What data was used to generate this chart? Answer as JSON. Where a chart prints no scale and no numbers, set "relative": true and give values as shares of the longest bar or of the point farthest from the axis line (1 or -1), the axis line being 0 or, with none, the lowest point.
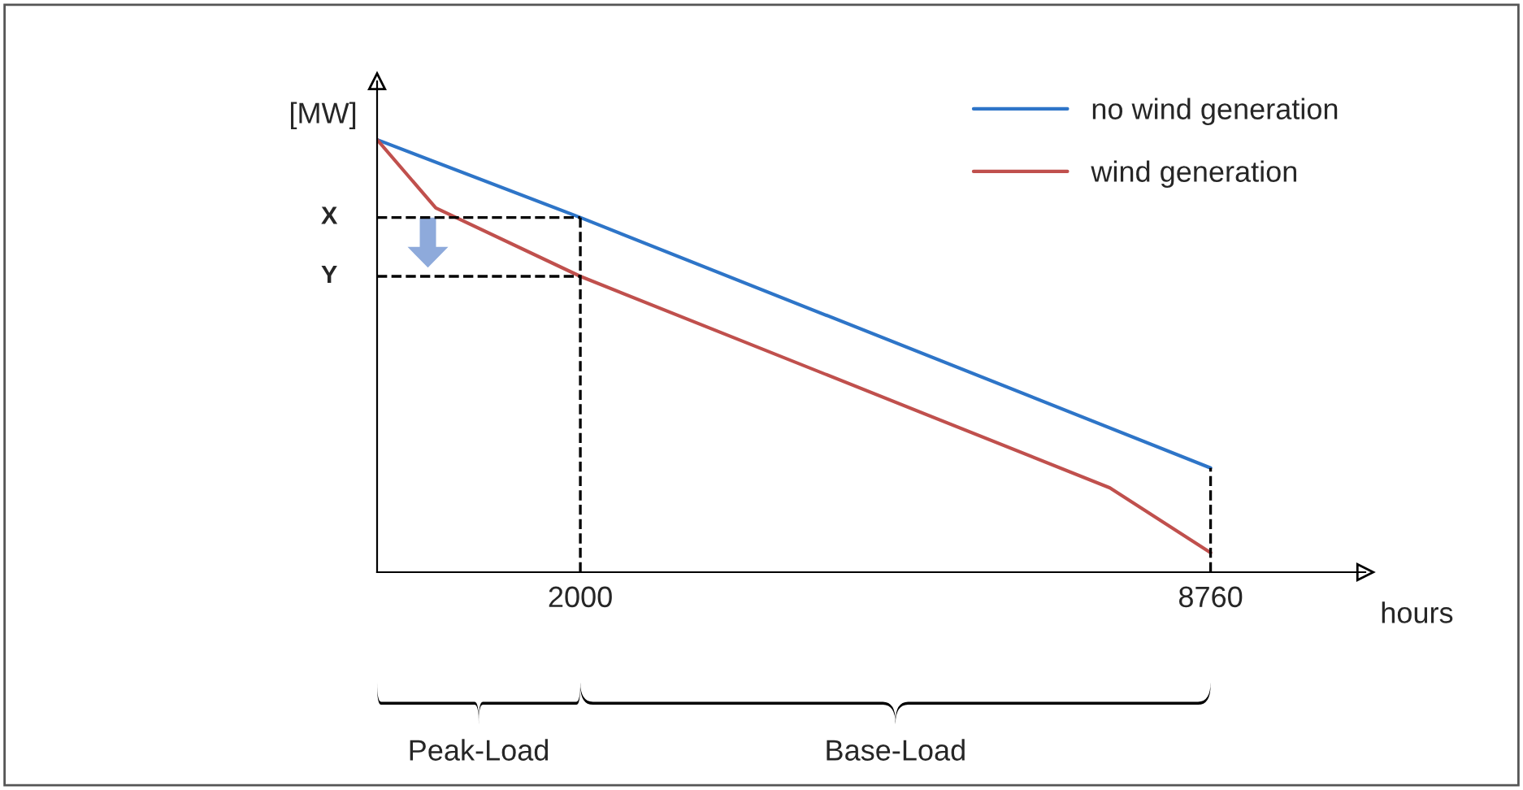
{
  "chart_data": {
    "type": "line",
    "relative": true,
    "xlabel": "hours",
    "ylabel": "[MW]",
    "x": [
      -180,
      2000,
      8760
    ],
    "xlim": [
      -180,
      10420
    ],
    "xticks": [
      2000,
      8760
    ],
    "tick_labels": "x",
    "series": [
      {
        "name": "no wind generation",
        "color": "#2e75c8",
        "values": [
          1,
          0.82,
          0.241
        ]
      },
      {
        "name": "wind generation",
        "color": "#c0504d",
        "x": [
          -180,
          450,
          2000,
          7680,
          8760
        ],
        "values": [
          1,
          0.842,
          0.684,
          0.195,
          0.045
        ]
      }
    ],
    "ref_lines": [
      {
        "axis": "y",
        "value": 0.82,
        "label": "X",
        "line_style": "dashed",
        "color": "#000000"
      },
      {
        "axis": "y",
        "value": 0.684,
        "label": "Y",
        "line_style": "dashed",
        "color": "#000000"
      },
      {
        "axis": "x",
        "value": 2000,
        "line_style": "dashed",
        "color": "#000000"
      },
      {
        "axis": "x",
        "value": 8760,
        "line_style": "dashed",
        "color": "#000000"
      }
    ],
    "annotations": [
      "Peak-Load",
      "Base-Load"
    ],
    "legend": "top right",
    "grid": false,
    "marker": "none",
    "line_style": "solid"
  }
}
